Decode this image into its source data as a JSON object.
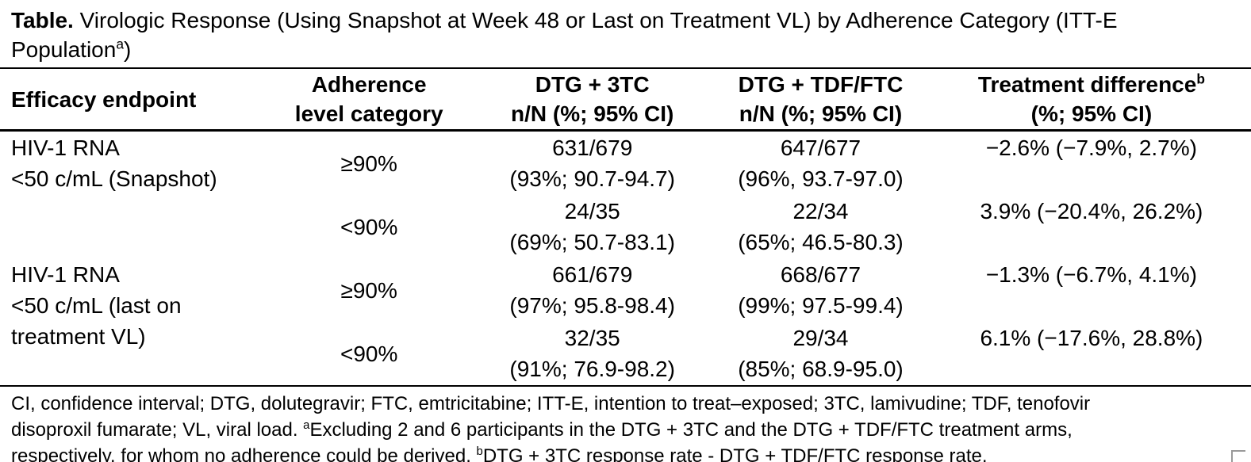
{
  "title": {
    "label": "Table.",
    "text": " Virologic Response (Using Snapshot at Week 48 or Last on Treatment VL) by Adherence Category (ITT-E Population",
    "superscript": "a",
    "suffix": ")"
  },
  "table": {
    "header": {
      "efficacy": "Efficacy endpoint",
      "adherence": "Adherence\nlevel category",
      "dtg_3tc": "DTG + 3TC\nn/N (%; 95% CI)",
      "dtg_tdf_ftc": "DTG + TDF/FTC\nn/N (%; 95% CI)",
      "diff_line1": "Treatment difference",
      "diff_sup": "b",
      "diff_line2": "(%; 95% CI)"
    },
    "groups": [
      {
        "endpoint": "HIV-1 RNA\n<50 c/mL (Snapshot)",
        "rows": [
          {
            "adherence": "≥90%",
            "dtg_3tc_n": "631/679",
            "dtg_3tc_ci": "(93%; 90.7-94.7)",
            "dtg_tdf_n": "647/677",
            "dtg_tdf_ci": "(96%, 93.7-97.0)",
            "difference": "−2.6% (−7.9%, 2.7%)"
          },
          {
            "adherence": "<90%",
            "dtg_3tc_n": "24/35",
            "dtg_3tc_ci": "(69%; 50.7-83.1)",
            "dtg_tdf_n": "22/34",
            "dtg_tdf_ci": "(65%; 46.5-80.3)",
            "difference": "3.9% (−20.4%, 26.2%)"
          }
        ]
      },
      {
        "endpoint": "HIV-1 RNA\n<50 c/mL (last on\ntreatment VL)",
        "rows": [
          {
            "adherence": "≥90%",
            "dtg_3tc_n": "661/679",
            "dtg_3tc_ci": "(97%; 95.8-98.4)",
            "dtg_tdf_n": "668/677",
            "dtg_tdf_ci": "(99%; 97.5-99.4)",
            "difference": "−1.3% (−6.7%, 4.1%)"
          },
          {
            "adherence": "<90%",
            "dtg_3tc_n": "32/35",
            "dtg_3tc_ci": "(91%; 76.9-98.2)",
            "dtg_tdf_n": "29/34",
            "dtg_tdf_ci": "(85%; 68.9-95.0)",
            "difference": "6.1% (−17.6%, 28.8%)"
          }
        ]
      }
    ]
  },
  "footnotes": {
    "abbreviations": "CI, confidence interval; DTG, dolutegravir; FTC, emtricitabine; ITT-E, intention to treat–exposed; 3TC, lamivudine; TDF, tenofovir disoproxil fumarate; VL, viral load. ",
    "sup_a": "a",
    "note_a": "Excluding 2 and 6 participants in the DTG + 3TC and the DTG + TDF/FTC treatment arms, respectively, for whom no adherence could be derived. ",
    "sup_b": "b",
    "note_b": "DTG + 3TC response rate - DTG + TDF/FTC response rate."
  }
}
